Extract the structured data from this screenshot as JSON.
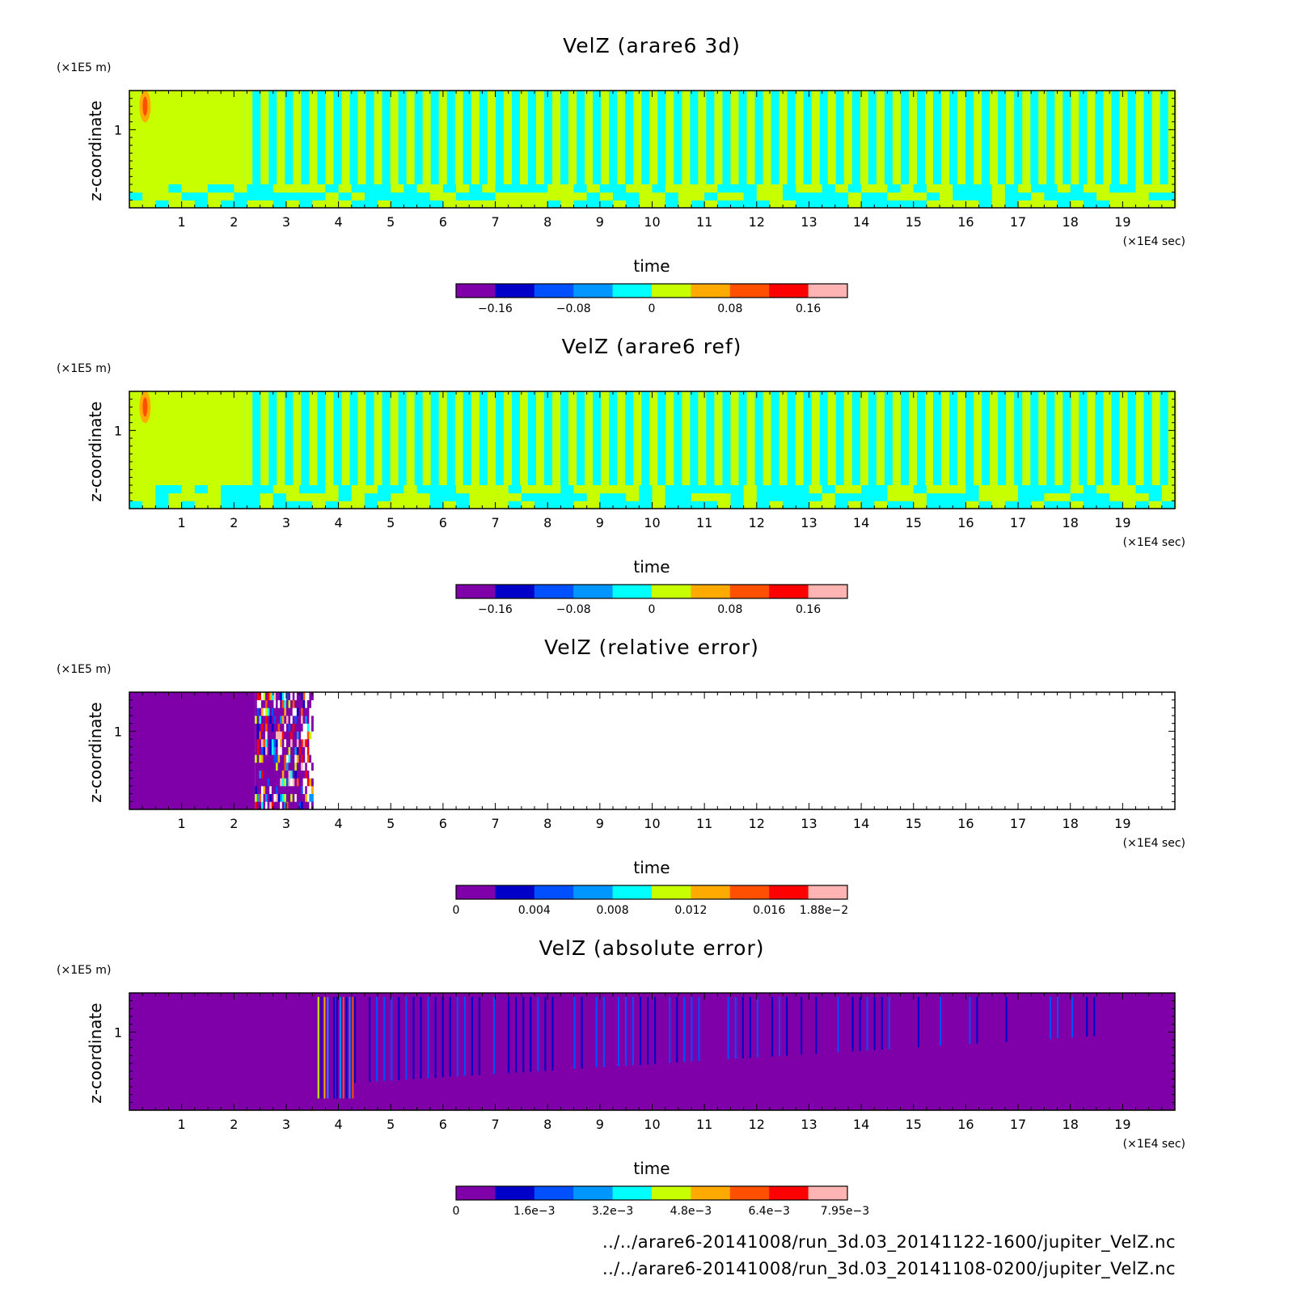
{
  "chart_data": [
    {
      "type": "heatmap",
      "title": "VelZ (arare6 3d)",
      "xlabel": "time",
      "ylabel": "z-coordinate",
      "x_unit": "(×1E4 sec)",
      "y_unit": "(×1E5 m)",
      "xlim": [
        0,
        20
      ],
      "ylim": [
        0,
        1.5
      ],
      "x_ticks": [
        1,
        2,
        3,
        4,
        5,
        6,
        7,
        8,
        9,
        10,
        11,
        12,
        13,
        14,
        15,
        16,
        17,
        18,
        19
      ],
      "y_ticks": [
        1
      ],
      "colorbar": {
        "levels": 10,
        "range": [
          -0.2,
          0.2
        ],
        "tick_values": [
          -0.16,
          -0.08,
          0,
          0.08,
          0.16
        ],
        "tick_labels": [
          "−0.16",
          "−0.08",
          "0",
          "0.08",
          "0.16"
        ],
        "colors": [
          "#7f00a8",
          "#0000c8",
          "#0050ff",
          "#0096ff",
          "#00ffff",
          "#c8ff00",
          "#ffaa00",
          "#ff5000",
          "#ff0000",
          "#ffb4b4"
        ]
      },
      "pattern": "oscillating",
      "events": [
        {
          "x": 0.3,
          "z": 1.3,
          "value": 0.12
        }
      ]
    },
    {
      "type": "heatmap",
      "title": "VelZ (arare6 ref)",
      "xlabel": "time",
      "ylabel": "z-coordinate",
      "x_unit": "(×1E4 sec)",
      "y_unit": "(×1E5 m)",
      "xlim": [
        0,
        20
      ],
      "ylim": [
        0,
        1.5
      ],
      "x_ticks": [
        1,
        2,
        3,
        4,
        5,
        6,
        7,
        8,
        9,
        10,
        11,
        12,
        13,
        14,
        15,
        16,
        17,
        18,
        19
      ],
      "y_ticks": [
        1
      ],
      "colorbar": {
        "levels": 10,
        "range": [
          -0.2,
          0.2
        ],
        "tick_values": [
          -0.16,
          -0.08,
          0,
          0.08,
          0.16
        ],
        "tick_labels": [
          "−0.16",
          "−0.08",
          "0",
          "0.08",
          "0.16"
        ],
        "colors": [
          "#7f00a8",
          "#0000c8",
          "#0050ff",
          "#0096ff",
          "#00ffff",
          "#c8ff00",
          "#ffaa00",
          "#ff5000",
          "#ff0000",
          "#ffb4b4"
        ]
      },
      "pattern": "oscillating",
      "events": [
        {
          "x": 0.3,
          "z": 1.3,
          "value": 0.12
        }
      ]
    },
    {
      "type": "heatmap",
      "title": "VelZ (relative error)",
      "xlabel": "time",
      "ylabel": "z-coordinate",
      "x_unit": "(×1E4 sec)",
      "y_unit": "(×1E5 m)",
      "xlim": [
        0,
        20
      ],
      "ylim": [
        0,
        1.5
      ],
      "x_ticks": [
        1,
        2,
        3,
        4,
        5,
        6,
        7,
        8,
        9,
        10,
        11,
        12,
        13,
        14,
        15,
        16,
        17,
        18,
        19
      ],
      "y_ticks": [
        1
      ],
      "colorbar": {
        "levels": 10,
        "range": [
          0,
          0.02
        ],
        "tick_values": [
          0,
          0.004,
          0.008,
          0.012,
          0.016,
          0.0188
        ],
        "tick_labels": [
          "0",
          "0.004",
          "0.008",
          "0.012",
          "0.016",
          "1.88e−2"
        ],
        "colors": [
          "#7f00a8",
          "#0000c8",
          "#0050ff",
          "#0096ff",
          "#00ffff",
          "#c8ff00",
          "#ffaa00",
          "#ff5000",
          "#ff0000",
          "#ffb4b4"
        ]
      },
      "pattern": "relative",
      "regions": [
        {
          "x_from": 0,
          "x_to": 2.4,
          "value": 0
        },
        {
          "x_from": 2.4,
          "x_to": 3.5,
          "value": "mixed"
        },
        {
          "x_from": 3.5,
          "x_to": 20,
          "value": null
        }
      ]
    },
    {
      "type": "heatmap",
      "title": "VelZ (absolute error)",
      "xlabel": "time",
      "ylabel": "z-coordinate",
      "x_unit": "(×1E4 sec)",
      "y_unit": "(×1E5 m)",
      "xlim": [
        0,
        20
      ],
      "ylim": [
        0,
        1.5
      ],
      "x_ticks": [
        1,
        2,
        3,
        4,
        5,
        6,
        7,
        8,
        9,
        10,
        11,
        12,
        13,
        14,
        15,
        16,
        17,
        18,
        19
      ],
      "y_ticks": [
        1
      ],
      "colorbar": {
        "levels": 10,
        "range": [
          0,
          0.008
        ],
        "tick_values": [
          0,
          0.0016,
          0.0032,
          0.0048,
          0.0064,
          0.00795
        ],
        "tick_labels": [
          "0",
          "1.6e−3",
          "3.2e−3",
          "4.8e−3",
          "6.4e−3",
          "7.95e−3"
        ],
        "colors": [
          "#7f00a8",
          "#0000c8",
          "#0050ff",
          "#0096ff",
          "#00ffff",
          "#c8ff00",
          "#ffaa00",
          "#ff5000",
          "#ff0000",
          "#ffb4b4"
        ]
      },
      "pattern": "absolute",
      "regions": [
        {
          "x_from": 0,
          "x_to": 3.6,
          "value": 0
        },
        {
          "x_from": 3.6,
          "x_to": 4.3,
          "value": 0.0048
        },
        {
          "x_from": 4.3,
          "x_to": 18.5,
          "value": 0.0016
        }
      ]
    }
  ],
  "source_files": [
    "../../arare6-20141008/run_3d.03_20141122-1600/jupiter_VelZ.nc",
    "../../arare6-20141008/run_3d.03_20141108-0200/jupiter_VelZ.nc"
  ]
}
